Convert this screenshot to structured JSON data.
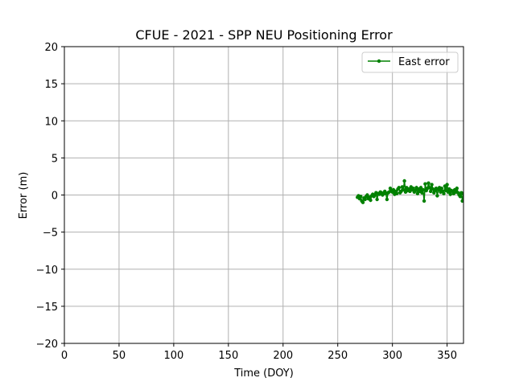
{
  "chart_data": {
    "type": "line",
    "title": "CFUE - 2021 - SPP NEU Positioning Error",
    "xlabel": "Time (DOY)",
    "ylabel": "Error (m)",
    "xlim": [
      0,
      365
    ],
    "ylim": [
      -20,
      20
    ],
    "xticks": [
      0,
      50,
      100,
      150,
      200,
      250,
      300,
      350
    ],
    "yticks": [
      -20,
      -15,
      -10,
      -5,
      0,
      5,
      10,
      15,
      20
    ],
    "grid": true,
    "legend_position": "top-right",
    "series": [
      {
        "name": "East error",
        "color": "#008000",
        "marker": "circle",
        "x": [
          268,
          269,
          270,
          271,
          272,
          273,
          274,
          275,
          276,
          277,
          278,
          279,
          280,
          281,
          282,
          283,
          284,
          285,
          286,
          287,
          288,
          289,
          290,
          291,
          292,
          293,
          294,
          295,
          296,
          297,
          298,
          299,
          300,
          301,
          302,
          303,
          304,
          305,
          306,
          307,
          308,
          309,
          310,
          311,
          312,
          313,
          314,
          315,
          316,
          317,
          318,
          319,
          320,
          321,
          322,
          323,
          324,
          325,
          326,
          327,
          328,
          329,
          330,
          331,
          332,
          333,
          334,
          335,
          336,
          337,
          338,
          339,
          340,
          341,
          342,
          343,
          344,
          345,
          346,
          347,
          348,
          349,
          350,
          351,
          352,
          353,
          354,
          355,
          356,
          357,
          358,
          359,
          360,
          361,
          362,
          363,
          364,
          365
        ],
        "y": [
          -0.3,
          -0.1,
          -0.5,
          -0.2,
          -0.8,
          -1.0,
          -0.4,
          -0.6,
          -0.2,
          0.0,
          -0.5,
          -0.3,
          -0.7,
          -0.1,
          0.1,
          -0.2,
          0.0,
          0.3,
          -0.6,
          0.2,
          0.1,
          0.4,
          0.3,
          0.0,
          0.2,
          0.5,
          0.2,
          -0.6,
          0.3,
          0.4,
          0.9,
          0.6,
          0.4,
          0.7,
          0.1,
          0.5,
          0.2,
          0.8,
          1.0,
          0.3,
          0.5,
          1.1,
          0.7,
          1.9,
          0.4,
          1.0,
          0.6,
          0.8,
          0.5,
          1.1,
          0.7,
          0.9,
          0.4,
          0.6,
          1.0,
          0.2,
          0.8,
          0.5,
          1.0,
          0.3,
          0.7,
          -0.8,
          1.5,
          0.6,
          0.9,
          1.6,
          1.0,
          0.5,
          1.4,
          0.8,
          0.3,
          0.6,
          0.9,
          -0.1,
          0.7,
          1.0,
          0.4,
          0.9,
          0.5,
          0.2,
          1.2,
          0.6,
          1.4,
          0.4,
          0.8,
          0.1,
          0.6,
          0.5,
          0.2,
          0.7,
          0.4,
          0.9,
          0.3,
          0.0,
          -0.2,
          0.3,
          -0.8,
          0.2
        ]
      }
    ]
  }
}
